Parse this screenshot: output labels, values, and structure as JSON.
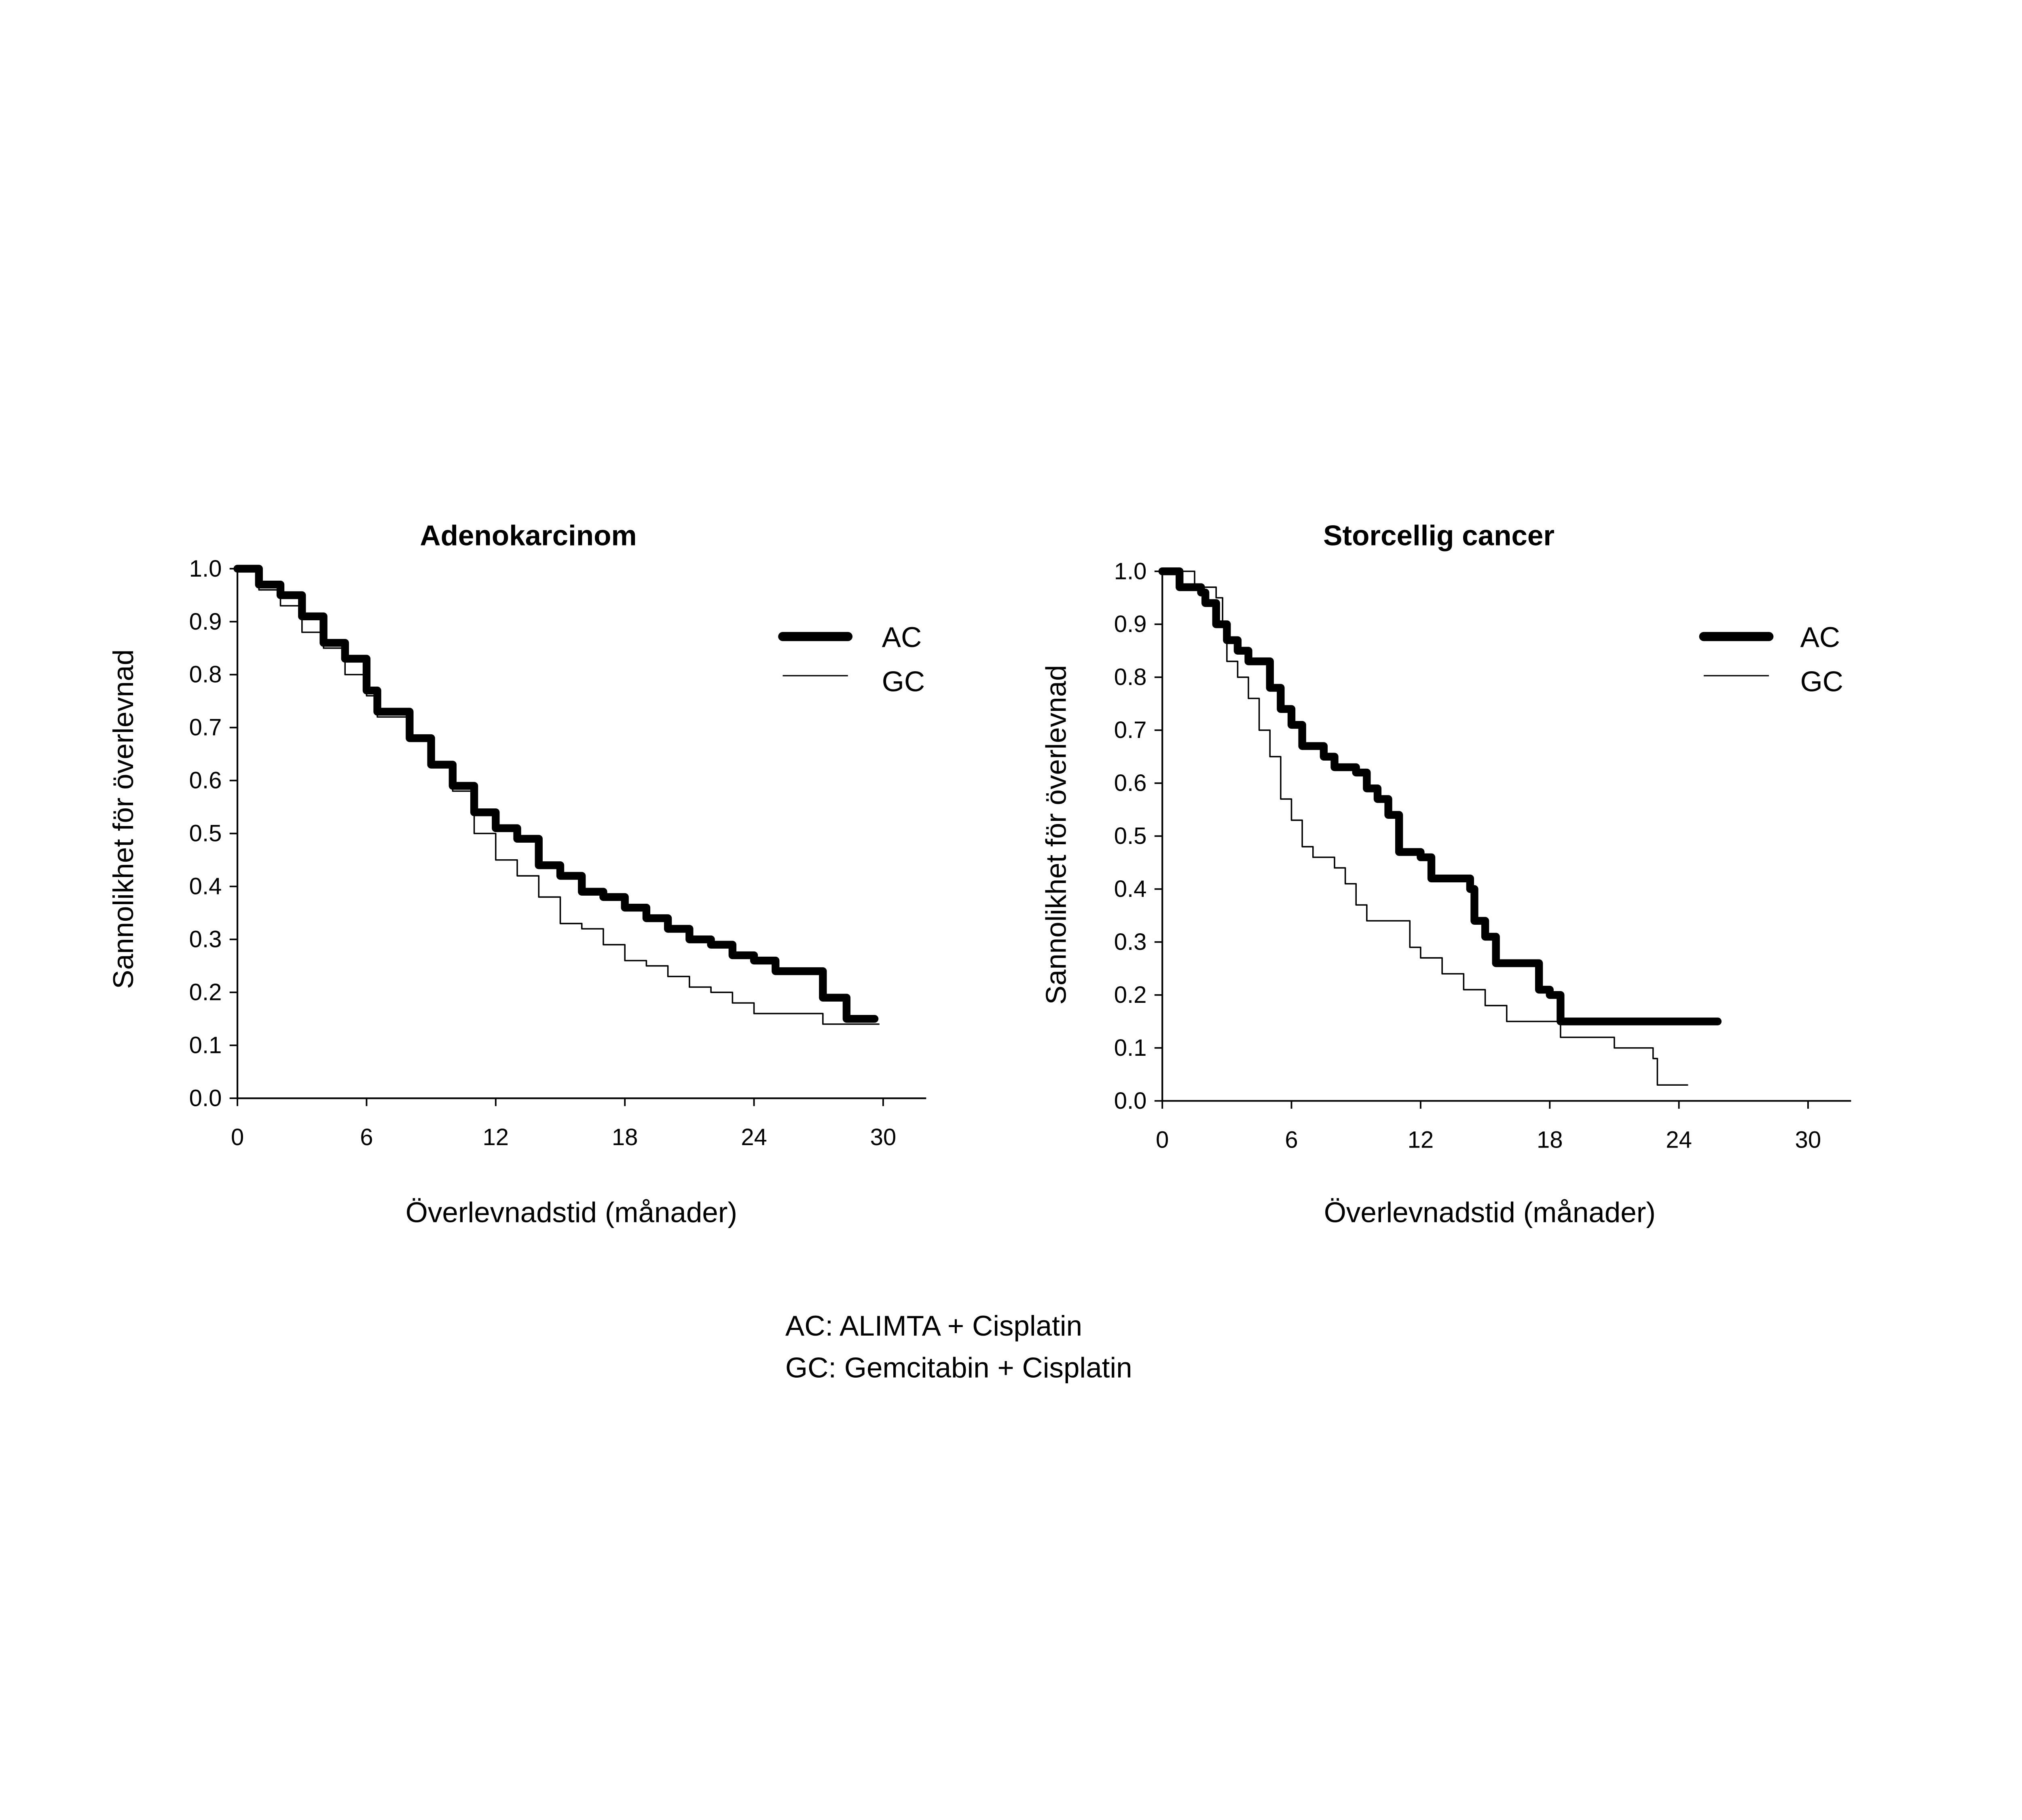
{
  "chart_data": [
    {
      "type": "line",
      "step": true,
      "title": "Adenokarcinom",
      "xlabel": "Överlevnadstid (månader)",
      "ylabel": "Sannolikhet för överlevnad",
      "xlim": [
        0,
        32
      ],
      "ylim": [
        0,
        1
      ],
      "xticks": [
        "0",
        "6",
        "12",
        "18",
        "24",
        "30"
      ],
      "yticks": [
        "0.0",
        "0.1",
        "0.2",
        "0.3",
        "0.4",
        "0.5",
        "0.6",
        "0.7",
        "0.8",
        "0.9",
        "1.0"
      ],
      "grid": false,
      "legend": "top-right",
      "series": [
        {
          "name": "AC",
          "style": "thick",
          "color": "#000000",
          "x": [
            0,
            1,
            2,
            3,
            4,
            5,
            6,
            6.5,
            8,
            9,
            10,
            11,
            12,
            13,
            14,
            15,
            16,
            17,
            18,
            19,
            20,
            21,
            22,
            23,
            24,
            25,
            27,
            27.2,
            28.3,
            29.6
          ],
          "y": [
            1,
            0.97,
            0.95,
            0.91,
            0.86,
            0.83,
            0.77,
            0.73,
            0.68,
            0.63,
            0.59,
            0.54,
            0.51,
            0.49,
            0.44,
            0.42,
            0.39,
            0.38,
            0.36,
            0.34,
            0.32,
            0.3,
            0.29,
            0.27,
            0.26,
            0.24,
            0.24,
            0.19,
            0.15,
            0.15
          ]
        },
        {
          "name": "GC",
          "style": "thin",
          "color": "#000000",
          "x": [
            0,
            1,
            2,
            3,
            4,
            5,
            6,
            6.5,
            8,
            9,
            10,
            11,
            12,
            13,
            14,
            15,
            16,
            17,
            18,
            19,
            20,
            21,
            22,
            23,
            24,
            27,
            27.2,
            29.8
          ],
          "y": [
            1,
            0.96,
            0.93,
            0.88,
            0.85,
            0.8,
            0.76,
            0.72,
            0.68,
            0.63,
            0.58,
            0.5,
            0.45,
            0.42,
            0.38,
            0.33,
            0.32,
            0.29,
            0.26,
            0.25,
            0.23,
            0.21,
            0.2,
            0.18,
            0.16,
            0.16,
            0.14,
            0.14
          ]
        }
      ]
    },
    {
      "type": "line",
      "step": true,
      "title": "Storcellig cancer",
      "xlabel": "Överlevnadstid (månader)",
      "ylabel": "Sannolikhet för överlevnad",
      "xlim": [
        0,
        32
      ],
      "ylim": [
        0,
        1
      ],
      "xticks": [
        "0",
        "6",
        "12",
        "18",
        "24",
        "30"
      ],
      "yticks": [
        "0.0",
        "0.1",
        "0.2",
        "0.3",
        "0.4",
        "0.5",
        "0.6",
        "0.7",
        "0.8",
        "0.9",
        "1.0"
      ],
      "grid": false,
      "legend": "top-right",
      "series": [
        {
          "name": "AC",
          "style": "thick",
          "color": "#000000",
          "x": [
            0,
            0.5,
            0.8,
            1.8,
            2,
            2.5,
            3,
            3.5,
            4,
            4.8,
            5,
            5.5,
            6,
            6.5,
            7.5,
            8,
            9,
            9.5,
            10,
            10.5,
            11,
            12,
            12.5,
            14,
            14.3,
            14.5,
            15,
            15.5,
            17,
            17.5,
            18,
            18.5,
            25.8
          ],
          "y": [
            1,
            1,
            0.97,
            0.96,
            0.94,
            0.9,
            0.87,
            0.85,
            0.83,
            0.83,
            0.78,
            0.74,
            0.71,
            0.67,
            0.65,
            0.63,
            0.62,
            0.59,
            0.57,
            0.54,
            0.47,
            0.46,
            0.42,
            0.42,
            0.4,
            0.34,
            0.31,
            0.26,
            0.26,
            0.21,
            0.2,
            0.15,
            0.15
          ]
        },
        {
          "name": "GC",
          "style": "thin",
          "color": "#000000",
          "x": [
            0,
            1.5,
            2.5,
            2.8,
            3,
            3.5,
            4,
            4.5,
            5,
            5.5,
            6,
            6.5,
            7,
            8,
            8.5,
            9,
            9.5,
            11,
            11.5,
            12,
            13,
            14,
            15,
            16,
            18,
            18.5,
            20,
            21,
            22.5,
            22.8,
            23,
            24.4
          ],
          "y": [
            1,
            0.97,
            0.95,
            0.9,
            0.83,
            0.8,
            0.76,
            0.7,
            0.65,
            0.57,
            0.53,
            0.48,
            0.46,
            0.44,
            0.41,
            0.37,
            0.34,
            0.34,
            0.29,
            0.27,
            0.24,
            0.21,
            0.18,
            0.15,
            0.15,
            0.12,
            0.12,
            0.1,
            0.1,
            0.08,
            0.03,
            0.03
          ]
        }
      ]
    }
  ],
  "footnote": {
    "line1": "AC: ALIMTA + Cisplatin",
    "line2": "GC: Gemcitabin + Cisplatin"
  }
}
